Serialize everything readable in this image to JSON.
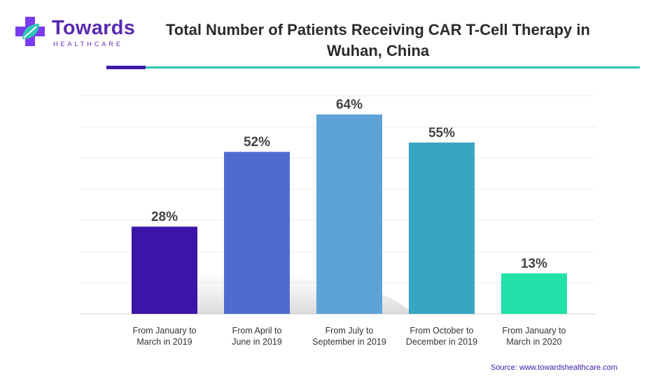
{
  "logo": {
    "word": "Towards",
    "sub": "HEALTHCARE",
    "colors": {
      "brand": "#5a2ab0",
      "leaf": "#2cc7b4",
      "cross": "#7a3cf0"
    }
  },
  "header": {
    "title_line1": "Total Number of Patients Receiving CAR T-Cell Therapy in",
    "title_line2": "Wuhan, China"
  },
  "chart_data": {
    "type": "bar",
    "title": "Total Number of Patients Receiving CAR T-Cell Therapy in Wuhan, China",
    "categories": [
      [
        "From January to",
        "March in 2019"
      ],
      [
        "From April to",
        "June in 2019"
      ],
      [
        "From July to",
        "September in 2019"
      ],
      [
        "From October to",
        "December in 2019"
      ],
      [
        "From January to",
        "March in 2020"
      ]
    ],
    "values": [
      28,
      52,
      64,
      55,
      13
    ],
    "value_labels": [
      "28%",
      "52%",
      "64%",
      "55%",
      "13%"
    ],
    "colors": [
      "#3d14a8",
      "#4f6bd0",
      "#5ea3d7",
      "#38a6c0",
      "#22e0a8"
    ],
    "ylim": [
      0,
      70
    ],
    "grid": true,
    "xlabel": "",
    "ylabel": ""
  },
  "footer": {
    "source": "Source: www.towardshealthcare.com"
  }
}
